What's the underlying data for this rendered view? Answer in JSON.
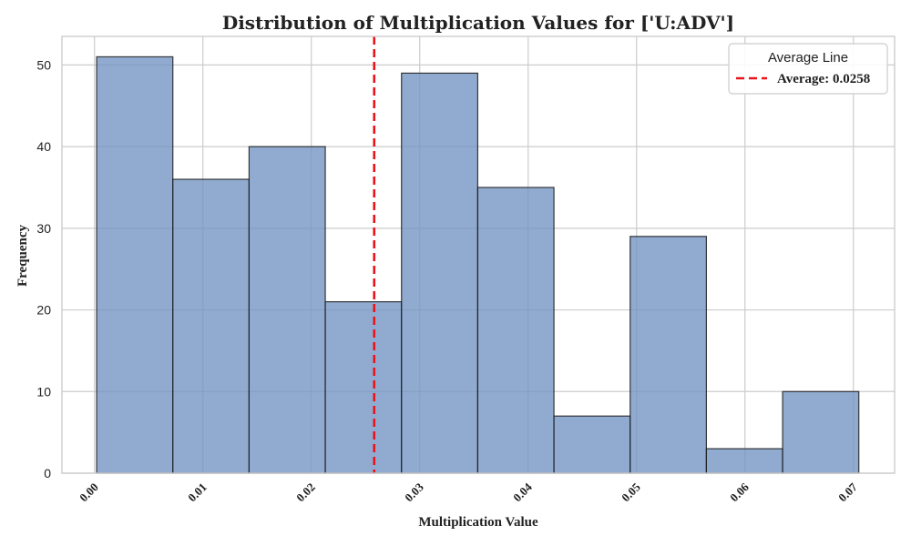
{
  "chart_data": {
    "type": "bar",
    "title": "Distribution of Multiplication Values for ['U:ADV']",
    "xlabel": "Multiplication Value",
    "ylabel": "Frequency",
    "bin_edges": [
      0.0002,
      0.00723,
      0.01426,
      0.02129,
      0.02832,
      0.03535,
      0.04238,
      0.04941,
      0.05644,
      0.06347,
      0.0705
    ],
    "values": [
      51,
      36,
      40,
      21,
      49,
      35,
      7,
      29,
      3,
      10
    ],
    "xlim": [
      -0.003,
      0.0738
    ],
    "ylim": [
      0,
      53.5
    ],
    "x_ticks": [
      0.0,
      0.01,
      0.02,
      0.03,
      0.04,
      0.05,
      0.06,
      0.07
    ],
    "x_tick_labels": [
      "0.00",
      "0.01",
      "0.02",
      "0.03",
      "0.04",
      "0.05",
      "0.06",
      "0.07"
    ],
    "y_ticks": [
      0,
      10,
      20,
      30,
      40,
      50
    ],
    "y_tick_labels": [
      "0",
      "10",
      "20",
      "30",
      "40",
      "50"
    ],
    "average": 0.0258,
    "grid": true,
    "legend": {
      "title": "Average Line",
      "entry": "Average: 0.0258",
      "placement": "top-right"
    },
    "colors": {
      "bar_fill": "#7294c3",
      "bar_edge": "#1a1a1a",
      "average_line": "#e8141c",
      "grid": "#cccccc",
      "axes_edge": "#cccccc"
    }
  }
}
